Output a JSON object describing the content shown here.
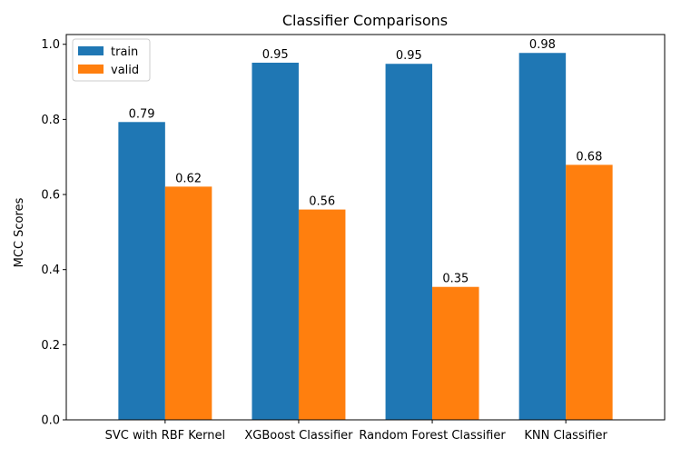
{
  "chart_data": {
    "type": "bar",
    "title": "Classifier Comparisons",
    "xlabel": "",
    "ylabel": "MCC Scores",
    "categories": [
      "SVC with RBF Kernel",
      "XGBoost Classifier",
      "Random Forest Classifier",
      "KNN Classifier"
    ],
    "series": [
      {
        "name": "train",
        "color": "#1f77b4",
        "values": [
          0.793,
          0.951,
          0.948,
          0.977
        ],
        "labels": [
          "0.79",
          "0.95",
          "0.95",
          "0.98"
        ]
      },
      {
        "name": "valid",
        "color": "#ff7f0e",
        "values": [
          0.621,
          0.56,
          0.354,
          0.679
        ],
        "labels": [
          "0.62",
          "0.56",
          "0.35",
          "0.68"
        ]
      }
    ],
    "ylim": [
      0,
      1.026
    ],
    "yticks": [
      0.0,
      0.2,
      0.4,
      0.6,
      0.8,
      1.0
    ],
    "ytick_labels": [
      "0.0",
      "0.2",
      "0.4",
      "0.6",
      "0.8",
      "1.0"
    ],
    "grid": false,
    "legend_position": "top-left"
  }
}
